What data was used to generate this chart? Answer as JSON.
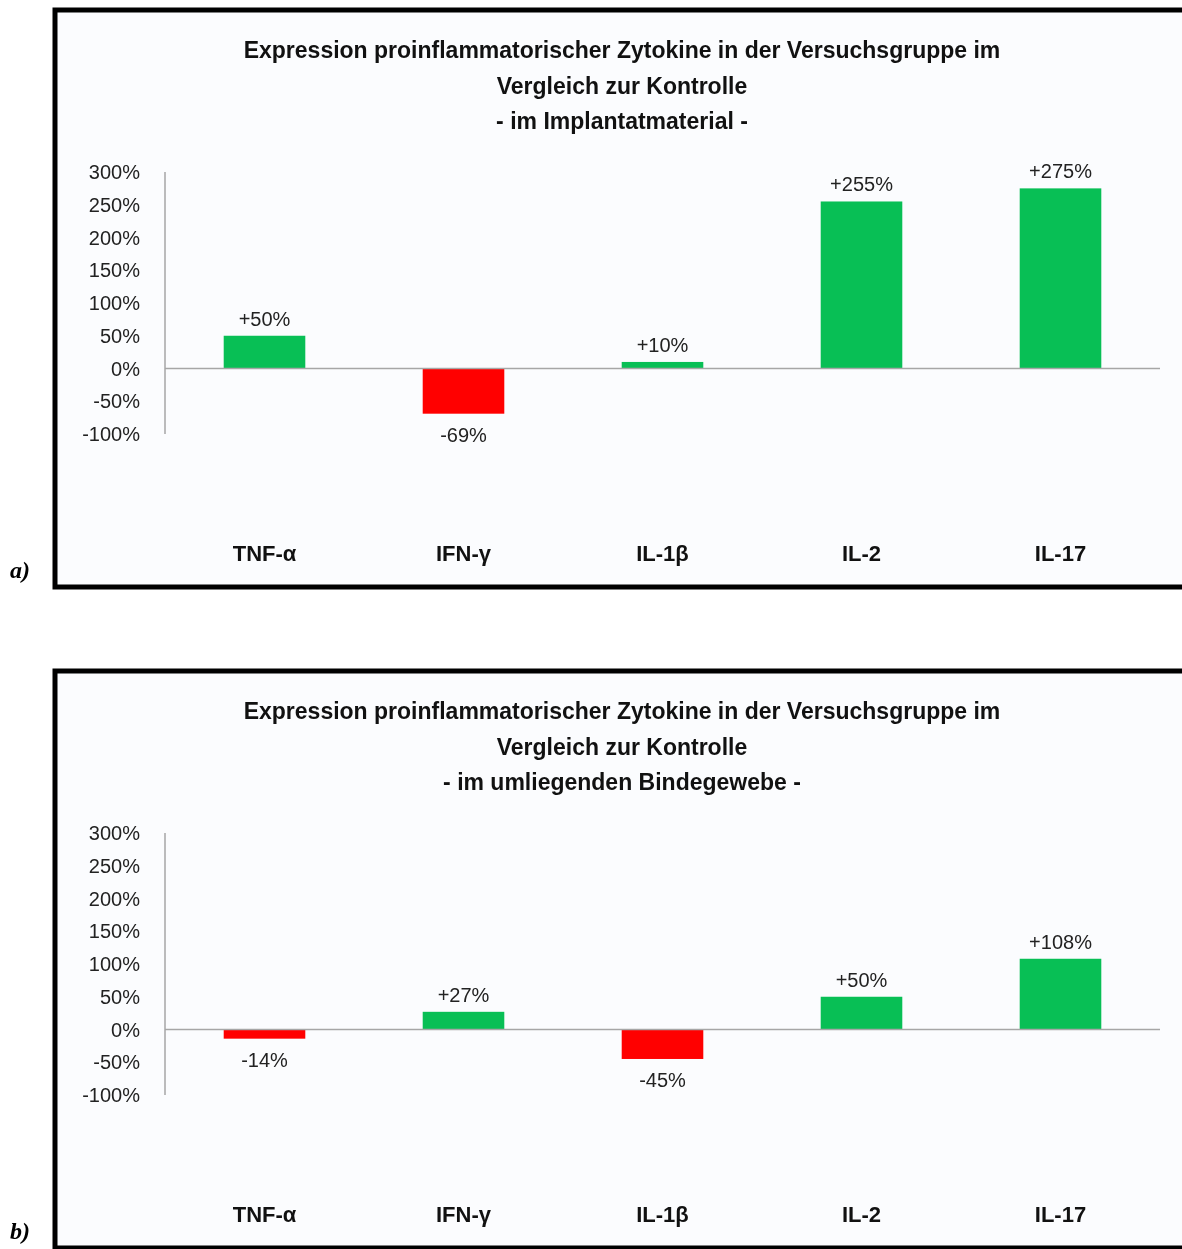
{
  "chart_data": [
    {
      "type": "bar",
      "title": "Expression proinflammatorischer Zytokine in der Versuchsgruppe im\nVergleich zur Kontrolle",
      "subtitle": "- im Implantatmaterial -",
      "categories": [
        "TNF-α",
        "IFN-γ",
        "IL-1β",
        "IL-2",
        "IL-17"
      ],
      "values": [
        50,
        -69,
        10,
        255,
        275
      ],
      "colors": [
        "#08bf55",
        "#ff0000",
        "#08bf55",
        "#08bf55",
        "#08bf55"
      ],
      "value_labels": [
        "+50%",
        "-69%",
        "+10%",
        "+255%",
        "+275%"
      ],
      "ylim": [
        -100,
        300
      ],
      "yticks": [
        {
          "value": -100,
          "label": "-100%"
        },
        {
          "value": -50,
          "label": "-50%"
        },
        {
          "value": 0,
          "label": "0%"
        },
        {
          "value": 50,
          "label": "50%"
        },
        {
          "value": 100,
          "label": "100%"
        },
        {
          "value": 150,
          "label": "150%"
        },
        {
          "value": 200,
          "label": "200%"
        },
        {
          "value": 250,
          "label": "250%"
        },
        {
          "value": 300,
          "label": "300%"
        }
      ],
      "annotations": [
        "a)"
      ]
    },
    {
      "type": "bar",
      "title": "Expression proinflammatorischer Zytokine in der Versuchsgruppe im\nVergleich zur Kontrolle",
      "subtitle": "- im umliegenden Bindegewebe -",
      "categories": [
        "TNF-α",
        "IFN-γ",
        "IL-1β",
        "IL-2",
        "IL-17"
      ],
      "values": [
        -14,
        27,
        -45,
        50,
        108
      ],
      "colors": [
        "#ff0000",
        "#08bf55",
        "#ff0000",
        "#08bf55",
        "#08bf55"
      ],
      "value_labels": [
        "-14%",
        "+27%",
        "-45%",
        "+50%",
        "+108%"
      ],
      "ylim": [
        -100,
        300
      ],
      "yticks": [
        {
          "value": -100,
          "label": "-100%"
        },
        {
          "value": -50,
          "label": "-50%"
        },
        {
          "value": 0,
          "label": "0%"
        },
        {
          "value": 50,
          "label": "50%"
        },
        {
          "value": 100,
          "label": "100%"
        },
        {
          "value": 150,
          "label": "150%"
        },
        {
          "value": 200,
          "label": "200%"
        },
        {
          "value": 250,
          "label": "250%"
        },
        {
          "value": 300,
          "label": "300%"
        }
      ],
      "annotations": [
        "b)"
      ]
    }
  ]
}
